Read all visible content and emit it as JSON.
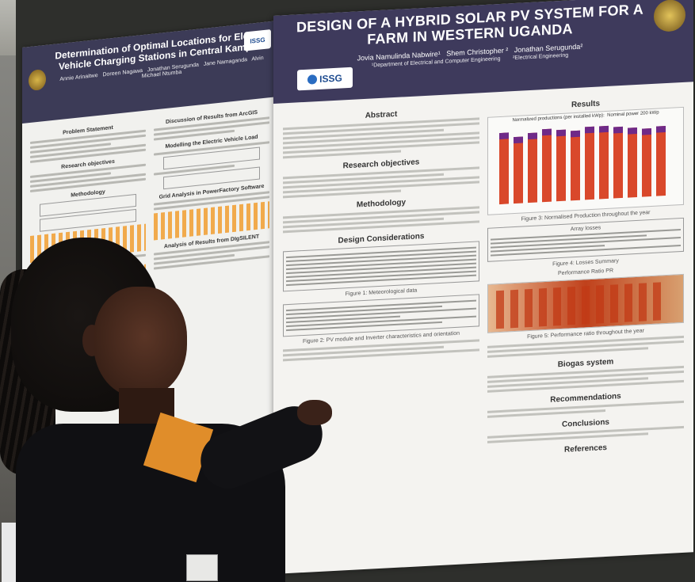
{
  "left_poster": {
    "title": "Determination of Optimal Locations for Electric Vehicle Charging Stations in Central Kampala",
    "authors": "Annie Arinaitwe   Doreen Nagawa   Jonathan Serugunda   Jane Namaganda   Alvin Michael Ntumba",
    "logo": "ISSG",
    "sections": [
      "Problem Statement",
      "Discussion of Results from ArcGIS",
      "Research objectives",
      "Modelling the Electric Vehicle Load",
      "Methodology",
      "Grid Analysis in PowerFactory Software",
      "Analysis of Results from DIgSILENT"
    ]
  },
  "main_poster": {
    "title": "DESIGN OF A HYBRID SOLAR PV SYSTEM FOR A FARM IN WESTERN UGANDA",
    "authors": "Jovia Namulinda Nabwire¹   Shem Christopher ²   Jonathan Serugunda²",
    "affiliations": "¹Department of Electrical and Computer Engineering        ²Electrical Engineering",
    "logo": "ISSG",
    "sections": {
      "abstract": "Abstract",
      "objectives": "Research objectives",
      "methodology": "Methodology",
      "design": "Design Considerations",
      "results": "Results",
      "biogas": "Biogas system",
      "recommendations": "Recommendations",
      "conclusions": "Conclusions",
      "references": "References"
    },
    "results": {
      "chart_title": "Normalized productions (per installed kWp):  Nominal power 200 kWp",
      "fig3": "Figure 3: Normalised Production throughout the year",
      "fig4": "Figure 4: Losses Summary",
      "pr_title": "Performance Ratio PR",
      "fig5": "Figure 5: Performance ratio throughout the year",
      "array_losses": "Array losses"
    },
    "figures": {
      "fig1": "Figure 1: Meteorological data",
      "fig2": "Figure 2: PV module and Inverter characteristics and orientation"
    }
  },
  "colors": {
    "poster_header": "#3e3a5c",
    "production_bar": "#d9482b",
    "loss_bar": "#6f2a88",
    "pr_bar": "#c13a16"
  }
}
